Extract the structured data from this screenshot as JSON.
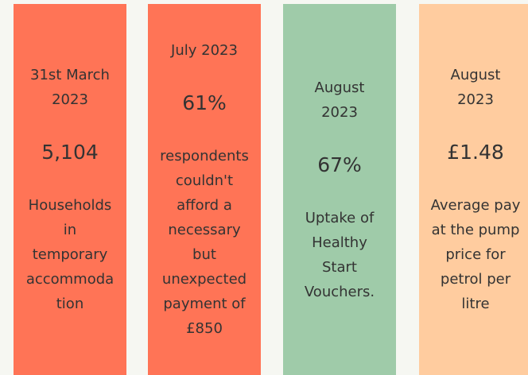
{
  "cards": [
    {
      "date": [
        "31st March",
        "2023"
      ],
      "value": "5,104",
      "description": [
        "Households",
        "in",
        "temporary",
        "accommoda",
        "tion"
      ],
      "color": "#ff7456"
    },
    {
      "date": [
        "July 2023"
      ],
      "value": "61%",
      "description": [
        "respondents",
        "couldn't",
        "afford a",
        "necessary",
        "but",
        "unexpected",
        "payment of",
        "£850"
      ],
      "color": "#ff7456"
    },
    {
      "date": [
        "August",
        "2023"
      ],
      "value": "67%",
      "description": [
        "Uptake of",
        "Healthy",
        "Start",
        "Vouchers."
      ],
      "color": "#9fcba9"
    },
    {
      "date": [
        "August",
        "2023"
      ],
      "value": "£1.48",
      "description": [
        "Average pay",
        "at the pump",
        "price for",
        "petrol per",
        "litre"
      ],
      "color": "#ffcc9f"
    }
  ]
}
